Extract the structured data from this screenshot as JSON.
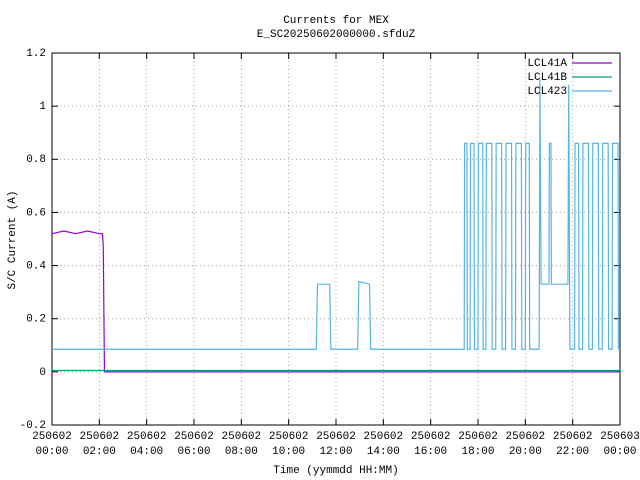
{
  "chart_data": {
    "type": "line",
    "title": "Currents for MEX",
    "subtitle": "E_SC20250602000000.sfduZ",
    "x_label": "Time (yymmdd HH:MM)",
    "y_label": "S/C Current (A)",
    "xlim": [
      "250602 00:00",
      "250603 00:00"
    ],
    "xticks": [
      {
        "value": "250602 00:00",
        "label": "250602\n00:00"
      },
      {
        "value": "250602 02:00",
        "label": "250602\n02:00"
      },
      {
        "value": "250602 04:00",
        "label": "250602\n04:00"
      },
      {
        "value": "250602 06:00",
        "label": "250602\n06:00"
      },
      {
        "value": "250602 08:00",
        "label": "250602\n08:00"
      },
      {
        "value": "250602 10:00",
        "label": "250602\n10:00"
      },
      {
        "value": "250602 12:00",
        "label": "250602\n12:00"
      },
      {
        "value": "250602 14:00",
        "label": "250602\n14:00"
      },
      {
        "value": "250602 16:00",
        "label": "250602\n16:00"
      },
      {
        "value": "250602 18:00",
        "label": "250602\n18:00"
      },
      {
        "value": "250602 20:00",
        "label": "250602\n20:00"
      },
      {
        "value": "250602 22:00",
        "label": "250602\n22:00"
      },
      {
        "value": "250603 00:00",
        "label": "250603\n00:00"
      }
    ],
    "ylim": [
      -0.2,
      1.2
    ],
    "yticks": [
      -0.2,
      0,
      0.2,
      0.4,
      0.6,
      0.8,
      1,
      1.2
    ],
    "grid": true,
    "legend": "top-right",
    "series": [
      {
        "name": "LCL41A",
        "color": "#9400d3",
        "x": [
          "250602 00:00",
          "250602 00:30",
          "250602 01:00",
          "250602 01:30",
          "250602 02:00",
          "250602 02:08",
          "250602 02:10",
          "250602 02:13",
          "250603 00:00"
        ],
        "values": [
          0.52,
          0.53,
          0.52,
          0.53,
          0.52,
          0.52,
          0.47,
          0,
          0
        ]
      },
      {
        "name": "LCL41B",
        "color": "#009e73",
        "x": [
          "250602 00:00",
          "250603 00:00"
        ],
        "values": [
          0.005,
          0.005
        ]
      },
      {
        "name": "LCL423",
        "color": "#56b4e9",
        "x": [
          "250602 00:00",
          "250602 11:10",
          "250602 11:13",
          "250602 11:44",
          "250602 11:47",
          "250602 12:55",
          "250602 12:58",
          "250602 13:25",
          "250602 13:28",
          "250602 17:25",
          "250602 17:26",
          "250602 17:32",
          "250602 17:33",
          "250602 17:40",
          "250602 17:41",
          "250602 17:50",
          "250602 17:51",
          "250602 18:00",
          "250602 18:01",
          "250602 18:12",
          "250602 18:13",
          "250602 18:20",
          "250602 18:21",
          "250602 18:35",
          "250602 18:36",
          "250602 18:45",
          "250602 18:46",
          "250602 19:00",
          "250602 19:01",
          "250602 19:10",
          "250602 19:11",
          "250602 19:25",
          "250602 19:26",
          "250602 19:35",
          "250602 19:36",
          "250602 19:50",
          "250602 19:51",
          "250602 20:00",
          "250602 20:01",
          "250602 20:10",
          "250602 20:11",
          "250602 20:35",
          "250602 20:37",
          "250602 20:40",
          "250602 21:00",
          "250602 21:01",
          "250602 21:05",
          "250602 21:06",
          "250602 21:48",
          "250602 21:50",
          "250602 21:53",
          "250602 22:05",
          "250602 22:06",
          "250602 22:15",
          "250602 22:16",
          "250602 22:25",
          "250602 22:26",
          "250602 22:40",
          "250602 22:41",
          "250602 22:50",
          "250602 22:51",
          "250602 23:05",
          "250602 23:06",
          "250602 23:15",
          "250602 23:16",
          "250602 23:30",
          "250602 23:31",
          "250602 23:40",
          "250602 23:41",
          "250602 23:55",
          "250602 23:56",
          "250603 00:00"
        ],
        "values": [
          0.085,
          0.085,
          0.33,
          0.33,
          0.085,
          0.085,
          0.34,
          0.33,
          0.085,
          0.085,
          0.86,
          0.86,
          0.085,
          0.085,
          0.86,
          0.86,
          0.085,
          0.085,
          0.86,
          0.86,
          0.085,
          0.085,
          0.86,
          0.86,
          0.085,
          0.085,
          0.86,
          0.86,
          0.085,
          0.085,
          0.86,
          0.86,
          0.085,
          0.085,
          0.86,
          0.86,
          0.085,
          0.085,
          0.86,
          0.86,
          0.085,
          0.085,
          1.1,
          0.33,
          0.33,
          0.86,
          0.86,
          0.33,
          0.33,
          1.08,
          0.085,
          0.085,
          0.86,
          0.86,
          0.085,
          0.085,
          0.86,
          0.86,
          0.085,
          0.085,
          0.86,
          0.86,
          0.085,
          0.085,
          0.86,
          0.86,
          0.085,
          0.085,
          0.86,
          0.86,
          0.085,
          0.085
        ]
      }
    ]
  }
}
